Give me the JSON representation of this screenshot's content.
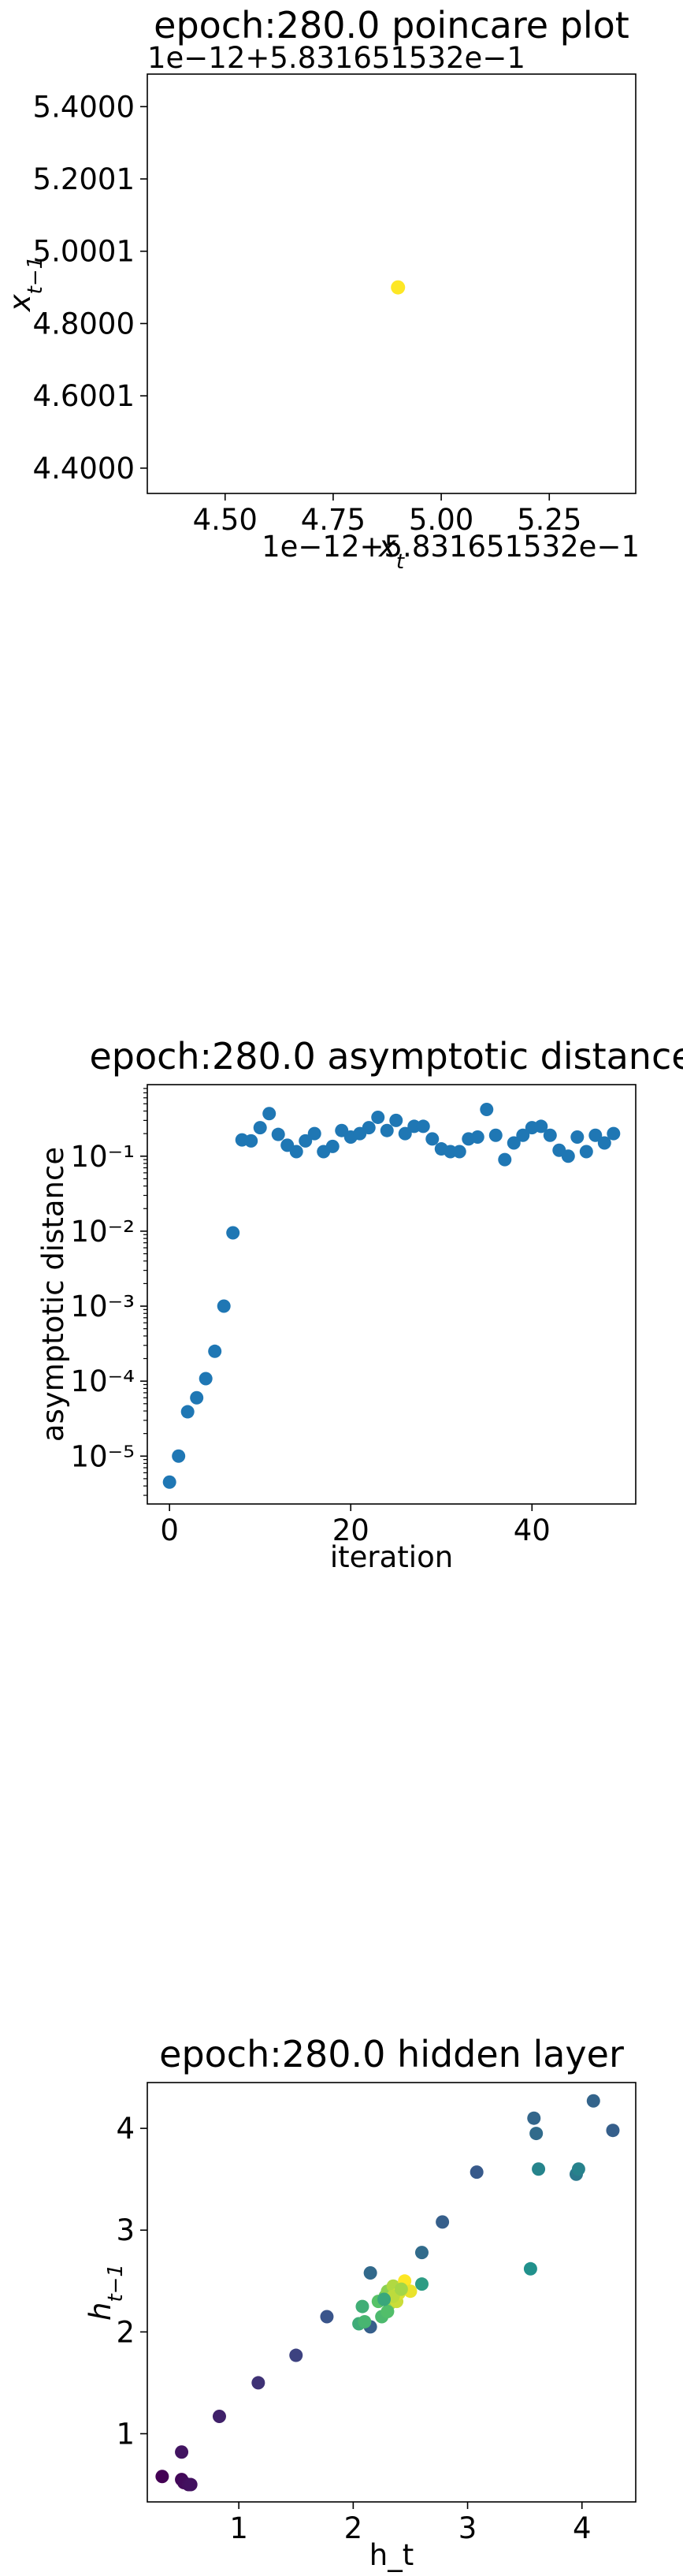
{
  "chart_data": [
    {
      "type": "scatter",
      "title": "epoch:280.0 poincare plot",
      "xlabel": "x_t",
      "ylabel": "x_{t-1}",
      "x_offset_label": "1e−12+5.831651532e−1",
      "y_offset_label": "1e−12+5.831651532e−1",
      "xlim": [
        4.32,
        5.45
      ],
      "ylim": [
        4.33,
        5.49
      ],
      "xticks": [
        4.5,
        4.75,
        5.0,
        5.25
      ],
      "xtick_labels": [
        "4.50",
        "4.75",
        "5.00",
        "5.25"
      ],
      "yticks": [
        4.4,
        4.6,
        4.8,
        5.0,
        5.2,
        5.4
      ],
      "ytick_labels": [
        "4.4000",
        "4.6001",
        "4.8000",
        "5.0001",
        "5.2001",
        "5.4000"
      ],
      "points": [
        {
          "x": 4.9,
          "y": 4.9
        }
      ],
      "color": "#fde725",
      "grid": false
    },
    {
      "type": "scatter",
      "title": "epoch:280.0 asymptotic distance",
      "xlabel": "iteration",
      "ylabel": "asymptotic distance",
      "yscale": "log",
      "xlim": [
        -2.45,
        51.45
      ],
      "ylim": [
        2.3e-06,
        0.9
      ],
      "xticks": [
        0,
        20,
        40
      ],
      "xtick_labels": [
        "0",
        "20",
        "40"
      ],
      "yticks": [
        1e-05,
        0.0001,
        0.001,
        0.01,
        0.1
      ],
      "ytick_labels": [
        "10⁻⁵",
        "10⁻⁴",
        "10⁻³",
        "10⁻²",
        "10⁻¹"
      ],
      "x": [
        0,
        1,
        2,
        3,
        4,
        5,
        6,
        7,
        8,
        9,
        10,
        11,
        12,
        13,
        14,
        15,
        16,
        17,
        18,
        19,
        20,
        21,
        22,
        23,
        24,
        25,
        26,
        27,
        28,
        29,
        30,
        31,
        32,
        33,
        34,
        35,
        36,
        37,
        38,
        39,
        40,
        41,
        42,
        43,
        44,
        45,
        46,
        47,
        48,
        49
      ],
      "y": [
        4.5e-06,
        1e-05,
        3.9e-05,
        6e-05,
        0.000108,
        0.00025,
        0.001,
        0.0095,
        0.165,
        0.16,
        0.24,
        0.37,
        0.195,
        0.14,
        0.115,
        0.16,
        0.2,
        0.115,
        0.135,
        0.22,
        0.18,
        0.2,
        0.24,
        0.33,
        0.22,
        0.3,
        0.2,
        0.25,
        0.25,
        0.17,
        0.125,
        0.115,
        0.115,
        0.17,
        0.18,
        0.42,
        0.19,
        0.09,
        0.15,
        0.19,
        0.24,
        0.25,
        0.19,
        0.12,
        0.1,
        0.18,
        0.115,
        0.19,
        0.15,
        0.2
      ],
      "color": "#1f77b4",
      "grid": false
    },
    {
      "type": "scatter",
      "title": "epoch:280.0 hidden layer",
      "xlabel": "h_t",
      "ylabel": "h_{t-1}",
      "xlim": [
        0.2,
        4.47
      ],
      "ylim": [
        0.33,
        4.45
      ],
      "xticks": [
        1,
        2,
        3,
        4
      ],
      "xtick_labels": [
        "1",
        "2",
        "3",
        "4"
      ],
      "yticks": [
        1,
        2,
        3,
        4
      ],
      "ytick_labels": [
        "1",
        "2",
        "3",
        "4"
      ],
      "colormap": "viridis",
      "x": [
        0.33,
        0.5,
        0.52,
        0.56,
        0.58,
        0.5,
        0.83,
        1.17,
        1.5,
        1.77,
        2.15,
        2.05,
        2.08,
        2.1,
        2.15,
        2.25,
        2.22,
        2.28,
        2.3,
        2.32,
        2.35,
        2.38,
        2.3,
        2.4,
        2.45,
        2.5,
        2.35,
        2.42,
        2.27,
        2.6,
        2.6,
        2.78,
        3.08,
        3.55,
        3.58,
        3.6,
        3.62,
        3.95,
        3.97,
        4.1,
        4.27
      ],
      "y": [
        0.58,
        0.55,
        0.52,
        0.5,
        0.5,
        0.82,
        1.17,
        1.5,
        1.77,
        2.15,
        2.05,
        2.08,
        2.25,
        2.1,
        2.58,
        2.15,
        2.3,
        2.35,
        2.4,
        2.28,
        2.45,
        2.3,
        2.2,
        2.38,
        2.5,
        2.4,
        2.35,
        2.42,
        2.32,
        2.47,
        2.78,
        3.08,
        3.57,
        2.62,
        4.1,
        3.95,
        3.6,
        3.55,
        3.6,
        4.27,
        3.98
      ],
      "c": [
        0.0,
        0.02,
        0.03,
        0.04,
        0.05,
        0.06,
        0.1,
        0.15,
        0.2,
        0.26,
        0.3,
        0.62,
        0.63,
        0.66,
        0.34,
        0.68,
        0.72,
        0.78,
        0.82,
        0.85,
        0.88,
        0.92,
        0.7,
        0.95,
        1.0,
        0.97,
        0.9,
        0.86,
        0.6,
        0.55,
        0.35,
        0.3,
        0.28,
        0.5,
        0.33,
        0.35,
        0.45,
        0.4,
        0.44,
        0.32,
        0.3
      ],
      "grid": false
    }
  ]
}
